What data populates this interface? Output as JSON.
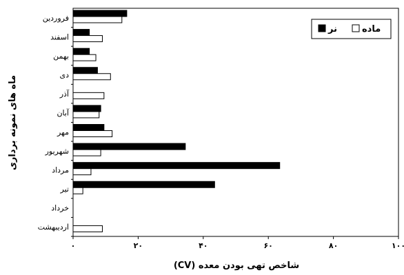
{
  "chart_data": {
    "type": "bar",
    "orientation": "horizontal",
    "title": "",
    "xlabel": "شاخص تهی بودن معده (CV)",
    "ylabel": "ماه های نمونه برداری",
    "xlim": [
      0,
      100
    ],
    "x_ticks": [
      0,
      20,
      40,
      60,
      80,
      100
    ],
    "x_tick_labels": [
      "۰",
      "۲۰",
      "۴۰",
      "۶۰",
      "۸۰",
      "۱۰۰"
    ],
    "grid": false,
    "legend_position": "top-right",
    "categories": [
      "فروردین",
      "اسفند",
      "بهمن",
      "دی",
      "آذر",
      "آبان",
      "مهر",
      "شهریور",
      "مرداد",
      "تیر",
      "خرداد",
      "اردیبهشت"
    ],
    "series": [
      {
        "name": "نر",
        "color": "#000000",
        "fill": "solid",
        "values": [
          16.5,
          5,
          5,
          7.5,
          0,
          8.5,
          9.5,
          34.5,
          63.5,
          43.5,
          0,
          0
        ]
      },
      {
        "name": "ماده",
        "color": "#000000",
        "fill": "hollow",
        "values": [
          15,
          9,
          7,
          11.5,
          9.5,
          8,
          12,
          8.5,
          5.5,
          3,
          0,
          9
        ]
      }
    ]
  }
}
